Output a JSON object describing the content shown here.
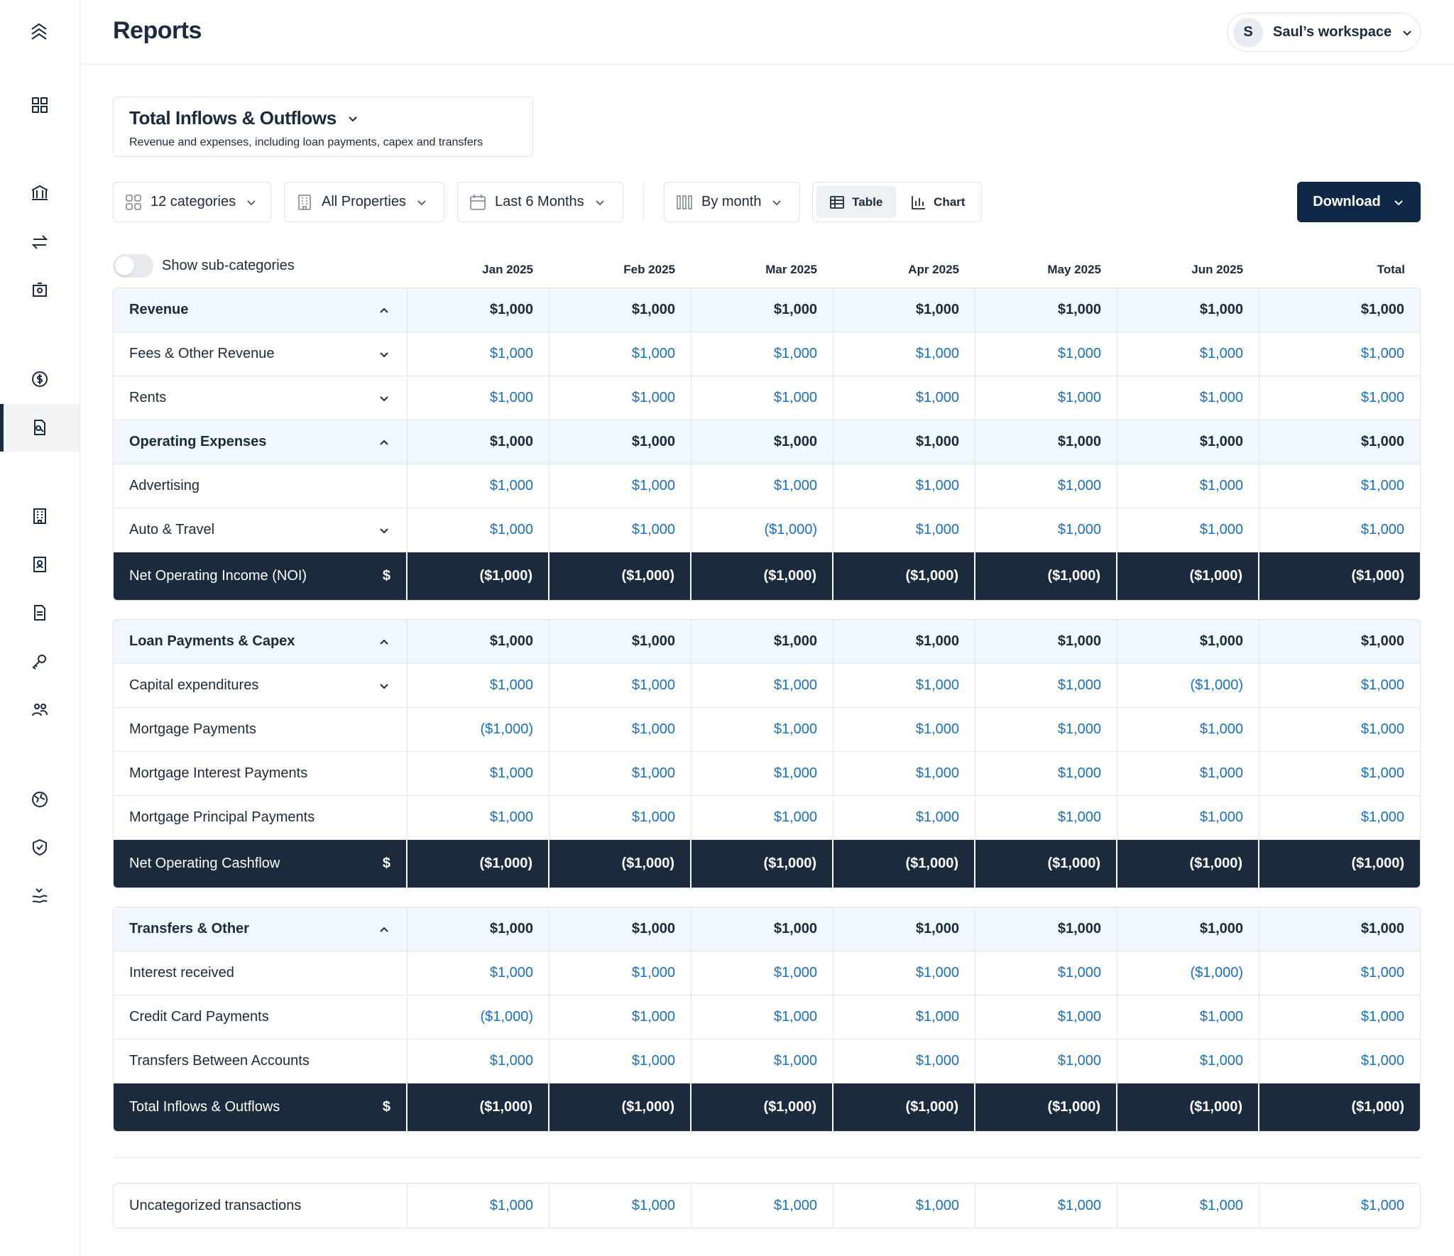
{
  "header": {
    "title": "Reports",
    "workspace": {
      "initial": "S",
      "name": "Saul’s workspace"
    }
  },
  "report": {
    "title": "Total Inflows & Outflows",
    "description": "Revenue and expenses, including loan payments, capex and transfers"
  },
  "toolbar": {
    "filters": [
      "12 categories",
      "All Properties",
      "Last 6 Months"
    ],
    "group": "By month",
    "views": [
      "Table",
      "Chart"
    ],
    "download": "Download"
  },
  "table": {
    "toggle": "Show sub-categories",
    "columns": [
      "Jan 2025",
      "Feb 2025",
      "Mar 2025",
      "Apr 2025",
      "May 2025",
      "Jun 2025",
      "Total"
    ],
    "sections": [
      {
        "groups": [
          {
            "label": "Revenue",
            "values": [
              "$1,000",
              "$1,000",
              "$1,000",
              "$1,000",
              "$1,000",
              "$1,000",
              "$1,000"
            ],
            "items": [
              {
                "label": "Fees & Other Revenue",
                "expandable": true,
                "values": [
                  "$1,000",
                  "$1,000",
                  "$1,000",
                  "$1,000",
                  "$1,000",
                  "$1,000",
                  "$1,000"
                ]
              },
              {
                "label": "Rents",
                "expandable": true,
                "values": [
                  "$1,000",
                  "$1,000",
                  "$1,000",
                  "$1,000",
                  "$1,000",
                  "$1,000",
                  "$1,000"
                ]
              }
            ]
          },
          {
            "label": "Operating Expenses",
            "values": [
              "$1,000",
              "$1,000",
              "$1,000",
              "$1,000",
              "$1,000",
              "$1,000",
              "$1,000"
            ],
            "items": [
              {
                "label": "Advertising",
                "expandable": false,
                "values": [
                  "$1,000",
                  "$1,000",
                  "$1,000",
                  "$1,000",
                  "$1,000",
                  "$1,000",
                  "$1,000"
                ]
              },
              {
                "label": "Auto & Travel",
                "expandable": true,
                "values": [
                  "$1,000",
                  "$1,000",
                  "($1,000)",
                  "$1,000",
                  "$1,000",
                  "$1,000",
                  "$1,000"
                ]
              }
            ]
          }
        ],
        "total": {
          "label": "Net Operating Income (NOI)",
          "symbol": "$",
          "values": [
            "($1,000)",
            "($1,000)",
            "($1,000)",
            "($1,000)",
            "($1,000)",
            "($1,000)",
            "($1,000)"
          ]
        }
      },
      {
        "groups": [
          {
            "label": "Loan Payments & Capex",
            "values": [
              "$1,000",
              "$1,000",
              "$1,000",
              "$1,000",
              "$1,000",
              "$1,000",
              "$1,000"
            ],
            "items": [
              {
                "label": "Capital expenditures",
                "expandable": true,
                "values": [
                  "$1,000",
                  "$1,000",
                  "$1,000",
                  "$1,000",
                  "$1,000",
                  "($1,000)",
                  "$1,000"
                ]
              },
              {
                "label": "Mortgage Payments",
                "expandable": false,
                "values": [
                  "($1,000)",
                  "$1,000",
                  "$1,000",
                  "$1,000",
                  "$1,000",
                  "$1,000",
                  "$1,000"
                ]
              },
              {
                "label": "Mortgage Interest Payments",
                "expandable": false,
                "values": [
                  "$1,000",
                  "$1,000",
                  "$1,000",
                  "$1,000",
                  "$1,000",
                  "$1,000",
                  "$1,000"
                ]
              },
              {
                "label": "Mortgage Principal Payments",
                "expandable": false,
                "values": [
                  "$1,000",
                  "$1,000",
                  "$1,000",
                  "$1,000",
                  "$1,000",
                  "$1,000",
                  "$1,000"
                ]
              }
            ]
          }
        ],
        "total": {
          "label": "Net Operating Cashflow",
          "symbol": "$",
          "values": [
            "($1,000)",
            "($1,000)",
            "($1,000)",
            "($1,000)",
            "($1,000)",
            "($1,000)",
            "($1,000)"
          ]
        }
      },
      {
        "groups": [
          {
            "label": "Transfers & Other",
            "values": [
              "$1,000",
              "$1,000",
              "$1,000",
              "$1,000",
              "$1,000",
              "$1,000",
              "$1,000"
            ],
            "items": [
              {
                "label": "Interest received",
                "expandable": false,
                "values": [
                  "$1,000",
                  "$1,000",
                  "$1,000",
                  "$1,000",
                  "$1,000",
                  "($1,000)",
                  "$1,000"
                ]
              },
              {
                "label": "Credit Card Payments",
                "expandable": false,
                "values": [
                  "($1,000)",
                  "$1,000",
                  "$1,000",
                  "$1,000",
                  "$1,000",
                  "$1,000",
                  "$1,000"
                ]
              },
              {
                "label": "Transfers Between Accounts",
                "expandable": false,
                "values": [
                  "$1,000",
                  "$1,000",
                  "$1,000",
                  "$1,000",
                  "$1,000",
                  "$1,000",
                  "$1,000"
                ]
              }
            ]
          }
        ],
        "total": {
          "label": "Total Inflows & Outflows",
          "symbol": "$",
          "values": [
            "($1,000)",
            "($1,000)",
            "($1,000)",
            "($1,000)",
            "($1,000)",
            "($1,000)",
            "($1,000)"
          ]
        }
      }
    ],
    "footer": {
      "label": "Uncategorized transactions",
      "values": [
        "$1,000",
        "$1,000",
        "$1,000",
        "$1,000",
        "$1,000",
        "$1,000",
        "$1,000"
      ]
    }
  }
}
